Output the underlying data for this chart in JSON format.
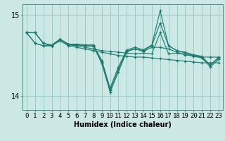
{
  "xlabel": "Humidex (Indice chaleur)",
  "bg_color": "#cce8e4",
  "line_color": "#1a7a6e",
  "grid_color": "#99ccc4",
  "xlim": [
    -0.5,
    23.5
  ],
  "ylim": [
    13.83,
    15.13
  ],
  "yticks": [
    14,
    15
  ],
  "xticks": [
    0,
    1,
    2,
    3,
    4,
    5,
    6,
    7,
    8,
    9,
    10,
    11,
    12,
    13,
    14,
    15,
    16,
    17,
    18,
    19,
    20,
    21,
    22,
    23
  ],
  "series": [
    [
      14.78,
      14.78,
      14.65,
      14.62,
      14.68,
      14.62,
      14.6,
      14.58,
      14.56,
      14.54,
      14.52,
      14.5,
      14.49,
      14.48,
      14.48,
      14.47,
      14.46,
      14.45,
      14.44,
      14.43,
      14.42,
      14.41,
      14.41,
      14.41
    ],
    [
      14.78,
      14.78,
      14.65,
      14.62,
      14.7,
      14.63,
      14.62,
      14.6,
      14.58,
      14.56,
      14.55,
      14.54,
      14.53,
      14.52,
      14.53,
      14.52,
      14.78,
      14.52,
      14.53,
      14.51,
      14.5,
      14.48,
      14.48,
      14.48
    ],
    [
      14.78,
      14.78,
      14.65,
      14.63,
      14.7,
      14.63,
      14.63,
      14.62,
      14.62,
      14.4,
      14.05,
      14.3,
      14.55,
      14.58,
      14.55,
      14.6,
      14.6,
      14.58,
      14.54,
      14.51,
      14.49,
      14.47,
      14.36,
      14.45
    ],
    [
      14.78,
      14.65,
      14.62,
      14.62,
      14.7,
      14.64,
      14.63,
      14.62,
      14.61,
      14.42,
      14.07,
      14.33,
      14.56,
      14.58,
      14.56,
      14.62,
      14.9,
      14.62,
      14.56,
      14.53,
      14.5,
      14.48,
      14.38,
      14.47
    ],
    [
      14.78,
      14.65,
      14.62,
      14.62,
      14.7,
      14.64,
      14.64,
      14.63,
      14.63,
      14.44,
      14.1,
      14.36,
      14.57,
      14.6,
      14.57,
      14.63,
      15.05,
      14.62,
      14.56,
      14.54,
      14.51,
      14.49,
      14.38,
      14.48
    ]
  ],
  "xlabel_fontsize": 7,
  "tick_fontsize": 6.5
}
